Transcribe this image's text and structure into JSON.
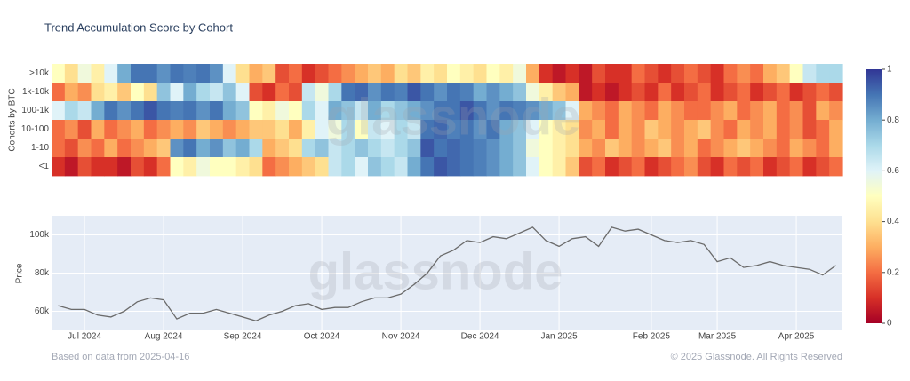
{
  "watermark": "glassnode",
  "footer": {
    "source": "Based on data from 2025-04-16",
    "copyright": "© 2025 Glassnode. All Rights Reserved"
  },
  "chart_data": [
    {
      "type": "heatmap",
      "title": "Trend Accumulation Score by Cohort",
      "y_title": "Cohorts by BTC",
      "categories": [
        ">10k",
        "1k-10k",
        "100-1k",
        "10-100",
        "1-10",
        "<1"
      ],
      "zlim": [
        0,
        1
      ],
      "zticks": [
        0,
        0.2,
        0.4,
        0.6,
        0.8,
        1
      ],
      "colorscale": [
        "#a50026",
        "#d73027",
        "#f46d43",
        "#fdae61",
        "#fee090",
        "#ffffbf",
        "#e0f3f8",
        "#abd9e9",
        "#74add1",
        "#4575b4",
        "#313695"
      ],
      "values": [
        [
          0.5,
          0.4,
          0.55,
          0.45,
          0.6,
          0.8,
          0.9,
          0.9,
          0.85,
          0.9,
          0.88,
          0.9,
          0.85,
          0.6,
          0.4,
          0.3,
          0.35,
          0.15,
          0.2,
          0.1,
          0.15,
          0.2,
          0.25,
          0.3,
          0.35,
          0.3,
          0.4,
          0.35,
          0.45,
          0.4,
          0.5,
          0.45,
          0.4,
          0.5,
          0.45,
          0.55,
          0.3,
          0.1,
          0.05,
          0.1,
          0.05,
          0.15,
          0.1,
          0.1,
          0.2,
          0.15,
          0.1,
          0.15,
          0.2,
          0.15,
          0.1,
          0.2,
          0.25,
          0.2,
          0.3,
          0.35,
          0.5,
          0.65,
          0.7,
          0.7
        ],
        [
          0.2,
          0.3,
          0.25,
          0.4,
          0.45,
          0.35,
          0.5,
          0.4,
          0.75,
          0.6,
          0.8,
          0.7,
          0.65,
          0.75,
          0.6,
          0.15,
          0.1,
          0.2,
          0.15,
          0.65,
          0.55,
          0.7,
          0.9,
          0.92,
          0.85,
          0.9,
          0.88,
          0.95,
          0.9,
          0.85,
          0.9,
          0.88,
          0.8,
          0.85,
          0.8,
          0.75,
          0.55,
          0.45,
          0.35,
          0.3,
          0.05,
          0.1,
          0.05,
          0.1,
          0.15,
          0.1,
          0.2,
          0.1,
          0.15,
          0.2,
          0.1,
          0.15,
          0.2,
          0.1,
          0.15,
          0.2,
          0.1,
          0.15,
          0.2,
          0.15
        ],
        [
          0.6,
          0.7,
          0.65,
          0.8,
          0.9,
          0.85,
          0.9,
          0.95,
          0.9,
          0.88,
          0.9,
          0.85,
          0.9,
          0.8,
          0.75,
          0.5,
          0.45,
          0.55,
          0.5,
          0.7,
          0.6,
          0.8,
          0.75,
          0.65,
          0.8,
          0.7,
          0.75,
          0.8,
          0.85,
          0.9,
          0.9,
          0.95,
          0.9,
          0.85,
          0.9,
          0.88,
          0.85,
          0.8,
          0.75,
          0.6,
          0.3,
          0.25,
          0.2,
          0.3,
          0.25,
          0.2,
          0.3,
          0.25,
          0.2,
          0.2,
          0.25,
          0.3,
          0.2,
          0.25,
          0.3,
          0.2,
          0.25,
          0.15,
          0.3,
          0.25
        ],
        [
          0.2,
          0.25,
          0.15,
          0.3,
          0.2,
          0.25,
          0.3,
          0.2,
          0.25,
          0.3,
          0.25,
          0.35,
          0.3,
          0.25,
          0.3,
          0.35,
          0.35,
          0.4,
          0.3,
          0.45,
          0.6,
          0.55,
          0.7,
          0.5,
          0.65,
          0.6,
          0.7,
          0.65,
          0.9,
          0.92,
          0.88,
          0.9,
          0.85,
          0.9,
          0.8,
          0.75,
          0.6,
          0.5,
          0.45,
          0.4,
          0.25,
          0.3,
          0.2,
          0.3,
          0.25,
          0.35,
          0.3,
          0.25,
          0.3,
          0.35,
          0.25,
          0.2,
          0.3,
          0.25,
          0.3,
          0.2,
          0.25,
          0.15,
          0.2,
          0.3
        ],
        [
          0.2,
          0.15,
          0.25,
          0.2,
          0.3,
          0.2,
          0.25,
          0.3,
          0.35,
          0.85,
          0.9,
          0.8,
          0.85,
          0.75,
          0.8,
          0.7,
          0.3,
          0.35,
          0.4,
          0.7,
          0.75,
          0.65,
          0.7,
          0.75,
          0.7,
          0.65,
          0.7,
          0.75,
          0.95,
          0.9,
          0.92,
          0.9,
          0.88,
          0.85,
          0.8,
          0.75,
          0.55,
          0.5,
          0.45,
          0.4,
          0.3,
          0.25,
          0.35,
          0.3,
          0.25,
          0.3,
          0.35,
          0.25,
          0.3,
          0.2,
          0.25,
          0.3,
          0.35,
          0.3,
          0.25,
          0.2,
          0.3,
          0.25,
          0.2,
          0.3
        ],
        [
          0.1,
          0.05,
          0.15,
          0.1,
          0.1,
          0.05,
          0.15,
          0.1,
          0.2,
          0.5,
          0.45,
          0.55,
          0.5,
          0.5,
          0.45,
          0.4,
          0.2,
          0.25,
          0.3,
          0.35,
          0.4,
          0.65,
          0.7,
          0.6,
          0.75,
          0.7,
          0.65,
          0.8,
          0.9,
          0.95,
          0.92,
          0.9,
          0.88,
          0.85,
          0.8,
          0.75,
          0.6,
          0.5,
          0.45,
          0.35,
          0.15,
          0.2,
          0.1,
          0.15,
          0.2,
          0.1,
          0.15,
          0.2,
          0.25,
          0.15,
          0.1,
          0.2,
          0.15,
          0.2,
          0.1,
          0.15,
          0.2,
          0.1,
          0.15,
          0.2
        ]
      ]
    },
    {
      "type": "line",
      "y_title": "Price",
      "color": "#6b6b6b",
      "grid": true,
      "ylim": [
        50000,
        110000
      ],
      "yticks": [
        {
          "value": 60000,
          "label": "60k"
        },
        {
          "value": 80000,
          "label": "80k"
        },
        {
          "value": 100000,
          "label": "100k"
        }
      ],
      "categories": [
        null,
        null,
        "Jul 2024",
        null,
        null,
        null,
        null,
        null,
        "Aug 2024",
        null,
        null,
        null,
        null,
        null,
        "Sep 2024",
        null,
        null,
        null,
        null,
        null,
        "Oct 2024",
        null,
        null,
        null,
        null,
        null,
        "Nov 2024",
        null,
        null,
        null,
        null,
        null,
        "Dec 2024",
        null,
        null,
        null,
        null,
        null,
        "Jan 2025",
        null,
        null,
        null,
        null,
        null,
        null,
        "Feb 2025",
        null,
        null,
        null,
        null,
        "Mar 2025",
        null,
        null,
        null,
        null,
        null,
        "Apr 2025",
        null,
        null,
        null
      ],
      "values": [
        63000,
        61000,
        61000,
        58000,
        57000,
        60000,
        65000,
        67000,
        66000,
        56000,
        59000,
        59000,
        61000,
        59000,
        57000,
        55000,
        58000,
        60000,
        63000,
        64000,
        61000,
        62000,
        62000,
        65000,
        67000,
        67000,
        69000,
        74000,
        80000,
        89000,
        92000,
        97000,
        96000,
        99000,
        98000,
        101000,
        104000,
        97000,
        94000,
        98000,
        99000,
        94000,
        104000,
        102000,
        103000,
        100000,
        97000,
        96000,
        97000,
        95000,
        86000,
        88000,
        83000,
        84000,
        86000,
        84000,
        83000,
        82000,
        79000,
        84000
      ]
    }
  ]
}
